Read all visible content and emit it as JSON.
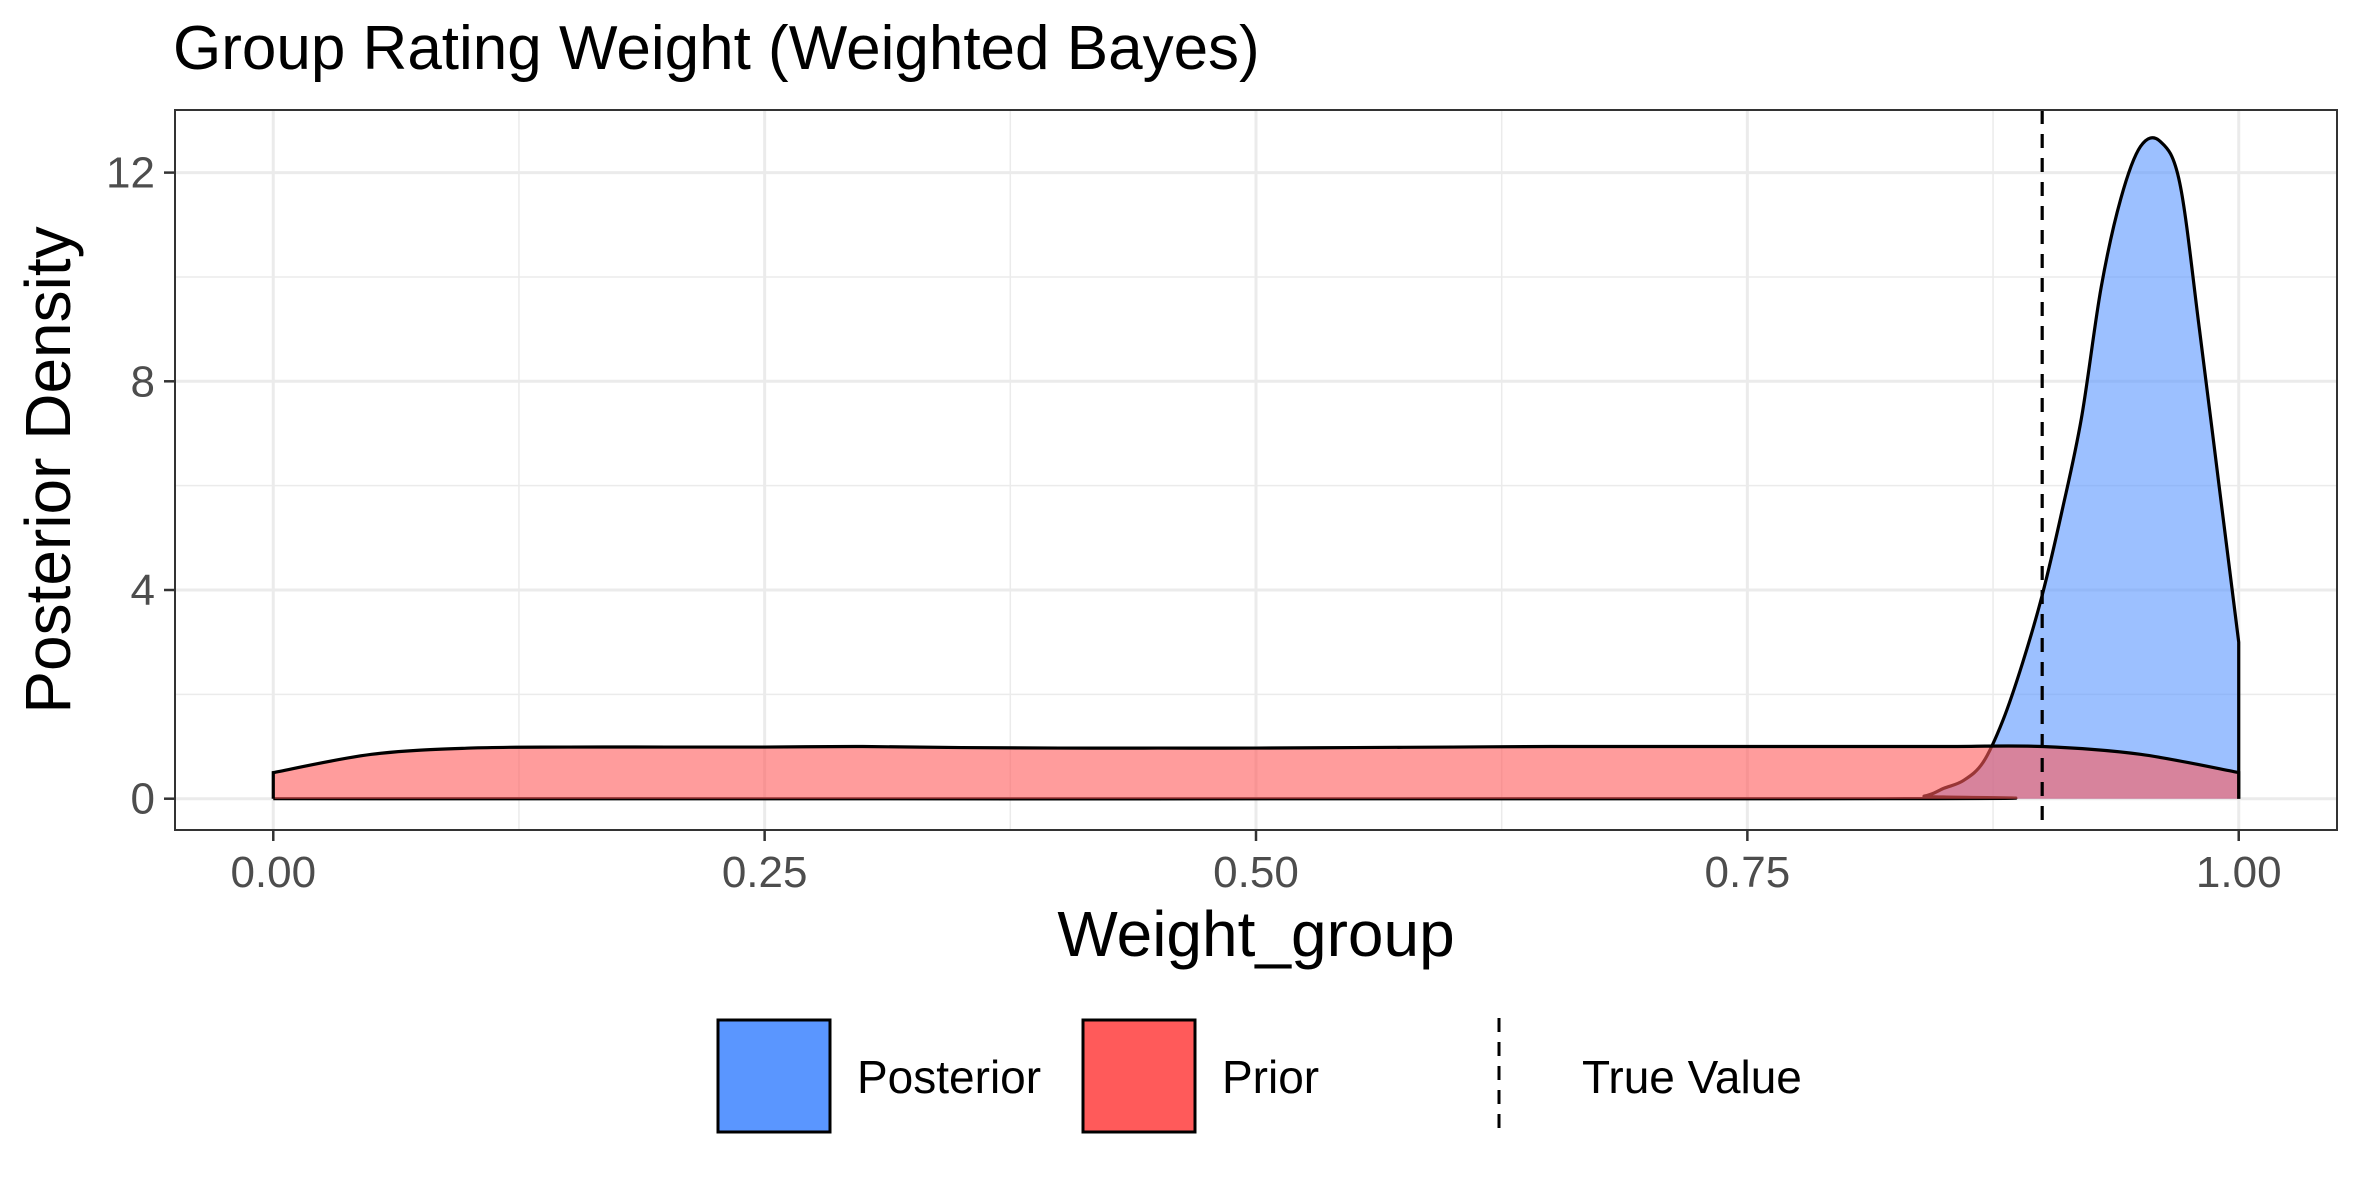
{
  "chart_data": {
    "type": "area",
    "title": "Group Rating Weight (Weighted Bayes)",
    "xlabel": "Weight_group",
    "ylabel": "Posterior Density",
    "xlim": [
      -0.05,
      1.05
    ],
    "ylim": [
      -0.6,
      13.2
    ],
    "x_ticks": [
      0,
      0.25,
      0.5,
      0.75,
      1
    ],
    "x_tick_labels": [
      "0.00",
      "0.25",
      "0.50",
      "0.75",
      "1.00"
    ],
    "y_ticks": [
      0,
      4,
      8,
      12
    ],
    "y_tick_labels": [
      "0",
      "4",
      "8",
      "12"
    ],
    "grid": true,
    "legend_position": "bottom",
    "reference_line": {
      "label": "True Value",
      "x": 0.9,
      "style": "dashed"
    },
    "series": [
      {
        "name": "Prior",
        "color": "#ff5a5a",
        "x": [
          0,
          0.05,
          0.1,
          0.15,
          0.2,
          0.25,
          0.3,
          0.35,
          0.4,
          0.45,
          0.5,
          0.55,
          0.6,
          0.65,
          0.7,
          0.75,
          0.8,
          0.85,
          0.9,
          0.95,
          1.0
        ],
        "y": [
          0.5,
          0.85,
          0.97,
          0.99,
          0.99,
          0.99,
          1.0,
          0.98,
          0.97,
          0.97,
          0.97,
          0.98,
          0.99,
          1.0,
          1.0,
          1.0,
          1.0,
          1.0,
          1.0,
          0.85,
          0.5
        ]
      },
      {
        "name": "Posterior",
        "color": "#5a96ff",
        "x": [
          0,
          0.82,
          0.84,
          0.85,
          0.86,
          0.87,
          0.88,
          0.89,
          0.9,
          0.91,
          0.92,
          0.93,
          0.94,
          0.95,
          0.96,
          0.97,
          0.98,
          0.99,
          1.0
        ],
        "y": [
          0,
          0,
          0.05,
          0.2,
          0.35,
          0.7,
          1.5,
          2.6,
          3.9,
          5.5,
          7.3,
          9.8,
          11.5,
          12.5,
          12.6,
          11.8,
          9.0,
          6.0,
          3.0
        ]
      }
    ]
  }
}
